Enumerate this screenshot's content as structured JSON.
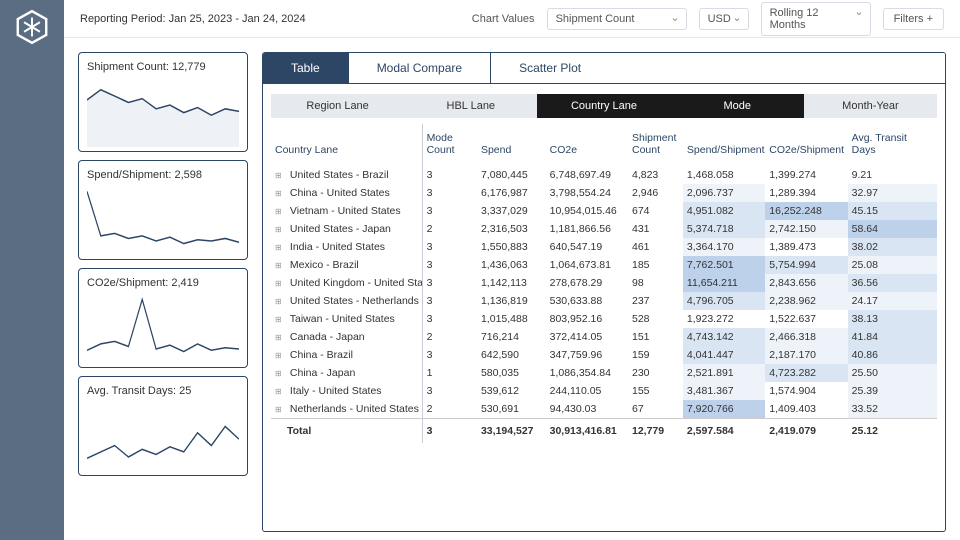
{
  "header": {
    "reporting_period": "Reporting Period: Jan 25, 2023 - Jan 24, 2024",
    "chart_values_label": "Chart Values",
    "chart_values": "Shipment Count",
    "currency": "USD",
    "range": "Rolling 12 Months",
    "filters": "Filters +"
  },
  "kpis": [
    {
      "label": "Shipment Count: 12,779",
      "points": [
        18,
        10,
        15,
        20,
        17,
        25,
        22,
        28,
        24,
        30,
        25,
        27
      ],
      "area": true
    },
    {
      "label": "Spend/Shipment: 2,598",
      "points": [
        5,
        40,
        38,
        42,
        40,
        44,
        41,
        46,
        43,
        44,
        42,
        45
      ],
      "area": false
    },
    {
      "label": "CO2e/Shipment: 2,419",
      "points": [
        45,
        40,
        38,
        42,
        5,
        44,
        41,
        46,
        40,
        45,
        43,
        44
      ],
      "area": false
    },
    {
      "label": "Avg. Transit Days: 25",
      "points": [
        45,
        40,
        35,
        44,
        38,
        42,
        36,
        40,
        25,
        35,
        20,
        30
      ],
      "area": false
    }
  ],
  "view_tabs": [
    "Table",
    "Modal Compare",
    "Scatter Plot"
  ],
  "active_view_tab": 0,
  "pivot_tabs": [
    {
      "label": "Region Lane",
      "dark": false
    },
    {
      "label": "HBL Lane",
      "dark": false
    },
    {
      "label": "Country Lane",
      "dark": true
    },
    {
      "label": "Mode",
      "dark": true
    },
    {
      "label": "Month-Year",
      "dark": false
    }
  ],
  "columns": [
    {
      "label": "Country Lane",
      "w": "22%"
    },
    {
      "label": "Mode Count",
      "w": "8%"
    },
    {
      "label": "Spend",
      "w": "10%"
    },
    {
      "label": "CO2e",
      "w": "12%"
    },
    {
      "label": "Shipment Count",
      "w": "8%"
    },
    {
      "label": "Spend/Shipment",
      "w": "12%"
    },
    {
      "label": "CO2e/Shipment",
      "w": "12%"
    },
    {
      "label": "Avg. Transit Days",
      "w": "13%"
    }
  ],
  "rows": [
    {
      "lane": "United States - Brazil",
      "mc": "3",
      "spend": "7,080,445",
      "co2e": "6,748,697.49",
      "sc": "4,823",
      "sps": "1,468.058",
      "cps": "1,399.274",
      "atd": "9.21",
      "h1": 0,
      "h2": 0,
      "h3": 0
    },
    {
      "lane": "China - United States",
      "mc": "3",
      "spend": "6,176,987",
      "co2e": "3,798,554.24",
      "sc": "2,946",
      "sps": "2,096.737",
      "cps": "1,289.394",
      "atd": "32.97",
      "h1": 1,
      "h2": 0,
      "h3": 1
    },
    {
      "lane": "Vietnam - United States",
      "mc": "3",
      "spend": "3,337,029",
      "co2e": "10,954,015.46",
      "sc": "674",
      "sps": "4,951.082",
      "cps": "16,252.248",
      "atd": "45.15",
      "h1": 2,
      "h2": 3,
      "h3": 2
    },
    {
      "lane": "United States - Japan",
      "mc": "2",
      "spend": "2,316,503",
      "co2e": "1,181,866.56",
      "sc": "431",
      "sps": "5,374.718",
      "cps": "2,742.150",
      "atd": "58.64",
      "h1": 2,
      "h2": 1,
      "h3": 3
    },
    {
      "lane": "India - United States",
      "mc": "3",
      "spend": "1,550,883",
      "co2e": "640,547.19",
      "sc": "461",
      "sps": "3,364.170",
      "cps": "1,389.473",
      "atd": "38.02",
      "h1": 1,
      "h2": 0,
      "h3": 2
    },
    {
      "lane": "Mexico - Brazil",
      "mc": "3",
      "spend": "1,436,063",
      "co2e": "1,064,673.81",
      "sc": "185",
      "sps": "7,762.501",
      "cps": "5,754.994",
      "atd": "25.08",
      "h1": 3,
      "h2": 2,
      "h3": 1
    },
    {
      "lane": "United Kingdom - United States",
      "mc": "3",
      "spend": "1,142,113",
      "co2e": "278,678.29",
      "sc": "98",
      "sps": "11,654.211",
      "cps": "2,843.656",
      "atd": "36.56",
      "h1": 3,
      "h2": 1,
      "h3": 2
    },
    {
      "lane": "United States - Netherlands",
      "mc": "3",
      "spend": "1,136,819",
      "co2e": "530,633.88",
      "sc": "237",
      "sps": "4,796.705",
      "cps": "2,238.962",
      "atd": "24.17",
      "h1": 2,
      "h2": 1,
      "h3": 1
    },
    {
      "lane": "Taiwan - United States",
      "mc": "3",
      "spend": "1,015,488",
      "co2e": "803,952.16",
      "sc": "528",
      "sps": "1,923.272",
      "cps": "1,522.637",
      "atd": "38.13",
      "h1": 0,
      "h2": 0,
      "h3": 2
    },
    {
      "lane": "Canada - Japan",
      "mc": "2",
      "spend": "716,214",
      "co2e": "372,414.05",
      "sc": "151",
      "sps": "4,743.142",
      "cps": "2,466.318",
      "atd": "41.84",
      "h1": 2,
      "h2": 1,
      "h3": 2
    },
    {
      "lane": "China - Brazil",
      "mc": "3",
      "spend": "642,590",
      "co2e": "347,759.96",
      "sc": "159",
      "sps": "4,041.447",
      "cps": "2,187.170",
      "atd": "40.86",
      "h1": 2,
      "h2": 1,
      "h3": 2
    },
    {
      "lane": "China - Japan",
      "mc": "1",
      "spend": "580,035",
      "co2e": "1,086,354.84",
      "sc": "230",
      "sps": "2,521.891",
      "cps": "4,723.282",
      "atd": "25.50",
      "h1": 1,
      "h2": 2,
      "h3": 1
    },
    {
      "lane": "Italy - United States",
      "mc": "3",
      "spend": "539,612",
      "co2e": "244,110.05",
      "sc": "155",
      "sps": "3,481.367",
      "cps": "1,574.904",
      "atd": "25.39",
      "h1": 1,
      "h2": 0,
      "h3": 1
    },
    {
      "lane": "Netherlands - United States",
      "mc": "2",
      "spend": "530,691",
      "co2e": "94,430.03",
      "sc": "67",
      "sps": "7,920.766",
      "cps": "1,409.403",
      "atd": "33.52",
      "h1": 3,
      "h2": 0,
      "h3": 1
    }
  ],
  "total": {
    "label": "Total",
    "mc": "3",
    "spend": "33,194,527",
    "co2e": "30,913,416.81",
    "sc": "12,779",
    "sps": "2,597.584",
    "cps": "2,419.079",
    "atd": "25.12"
  },
  "colors": {
    "accent": "#2d4666",
    "rail": "#5a6d82"
  }
}
